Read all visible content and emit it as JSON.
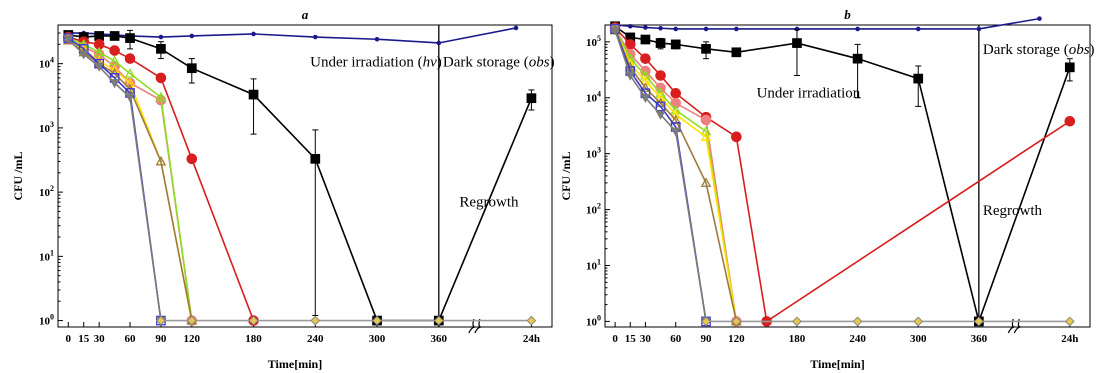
{
  "chart_data": [
    {
      "type": "line",
      "title": "a",
      "xlabel": "Time[min]",
      "ylabel": "CFU /mL",
      "yscale": "log",
      "ylim": [
        1,
        40000
      ],
      "x_ticks": [
        {
          "value": 0,
          "label": "0"
        },
        {
          "value": 15,
          "label": "15"
        },
        {
          "value": 30,
          "label": "30"
        },
        {
          "value": 60,
          "label": "60"
        },
        {
          "value": 90,
          "label": "90"
        },
        {
          "value": 120,
          "label": "120"
        },
        {
          "value": 180,
          "label": "180"
        },
        {
          "value": 240,
          "label": "240"
        },
        {
          "value": 300,
          "label": "300"
        },
        {
          "value": 360,
          "label": "360"
        },
        {
          "value": 450,
          "label": "24h"
        }
      ],
      "y_ticks": [
        {
          "value": 1,
          "base": "10",
          "exp": "0"
        },
        {
          "value": 10,
          "base": "10",
          "exp": "1"
        },
        {
          "value": 100,
          "base": "10",
          "exp": "2"
        },
        {
          "value": 1000,
          "base": "10",
          "exp": "3"
        },
        {
          "value": 10000,
          "base": "10",
          "exp": "4"
        }
      ],
      "annotations": [
        {
          "text": "Under irradiation",
          "italic_suffix": "hv",
          "x": 235,
          "y": 9000
        },
        {
          "text": "Dark storage",
          "italic_suffix": "obs",
          "x": 364,
          "y": 9000
        },
        {
          "text": "Regrowth",
          "italic_suffix": "",
          "x": 380,
          "y": 60
        }
      ],
      "divider_x": 360,
      "break_x": 395,
      "series": [
        {
          "color": "#1a1a8c",
          "marker": "dot",
          "points": [
            [
              0,
              30000
            ],
            [
              15,
              30000
            ],
            [
              30,
              29000
            ],
            [
              45,
              28000
            ],
            [
              60,
              27000
            ],
            [
              90,
              26000
            ],
            [
              120,
              27000
            ],
            [
              180,
              29000
            ],
            [
              240,
              26000
            ],
            [
              300,
              24000
            ],
            [
              360,
              21000
            ],
            [
              435,
              36000
            ]
          ]
        },
        {
          "color": "#000000",
          "marker": "square",
          "points": [
            [
              0,
              28000
            ],
            [
              15,
              26000
            ],
            [
              30,
              27000
            ],
            [
              45,
              27000
            ],
            [
              60,
              25000
            ],
            [
              90,
              17000
            ],
            [
              120,
              8500
            ],
            [
              180,
              3300
            ],
            [
              240,
              330
            ],
            [
              300,
              1
            ],
            [
              360,
              1
            ],
            [
              450,
              2900
            ]
          ],
          "errors": [
            0,
            0,
            0,
            0,
            8000,
            5000,
            3500,
            2500,
            600,
            0,
            0,
            1000
          ]
        },
        {
          "color": "#d81e1e",
          "marker": "circle",
          "points": [
            [
              0,
              26000
            ],
            [
              15,
              22000
            ],
            [
              30,
              20000
            ],
            [
              45,
              16000
            ],
            [
              60,
              12000
            ],
            [
              90,
              6000
            ],
            [
              120,
              330
            ],
            [
              180,
              1
            ]
          ]
        },
        {
          "color": "#f08080",
          "marker": "circle",
          "points": [
            [
              0,
              24000
            ],
            [
              15,
              18000
            ],
            [
              30,
              14000
            ],
            [
              45,
              9000
            ],
            [
              60,
              5000
            ],
            [
              90,
              2700
            ],
            [
              120,
              1
            ]
          ]
        },
        {
          "color": "#8ddc1f",
          "marker": "triangle",
          "points": [
            [
              0,
              25000
            ],
            [
              15,
              20000
            ],
            [
              30,
              15000
            ],
            [
              45,
              11000
            ],
            [
              60,
              7000
            ],
            [
              90,
              3000
            ],
            [
              120,
              1
            ]
          ]
        },
        {
          "color": "#ffe000",
          "marker": "triangle",
          "points": [
            [
              0,
              24000
            ],
            [
              15,
              16000
            ],
            [
              30,
              11000
            ],
            [
              45,
              8000
            ],
            [
              60,
              5000
            ],
            [
              90,
              300
            ],
            [
              120,
              1
            ]
          ]
        },
        {
          "color": "#9e7a3c",
          "marker": "triangle",
          "points": [
            [
              0,
              23000
            ],
            [
              15,
              15000
            ],
            [
              30,
              10000
            ],
            [
              45,
              7000
            ],
            [
              60,
              4000
            ],
            [
              90,
              300
            ],
            [
              120,
              1
            ]
          ]
        },
        {
          "color": "#3a3ad0",
          "marker": "square",
          "points": [
            [
              0,
              25000
            ],
            [
              15,
              17000
            ],
            [
              30,
              10000
            ],
            [
              45,
              6000
            ],
            [
              60,
              3500
            ],
            [
              90,
              1
            ]
          ]
        },
        {
          "color": "#7a7a7a",
          "marker": "triangle-down",
          "points": [
            [
              0,
              24000
            ],
            [
              15,
              14000
            ],
            [
              30,
              9000
            ],
            [
              45,
              5000
            ],
            [
              60,
              3000
            ],
            [
              90,
              1
            ]
          ]
        },
        {
          "color": "#9a9a9a",
          "marker": "diamond",
          "points": [
            [
              90,
              1
            ],
            [
              120,
              1
            ],
            [
              180,
              1
            ],
            [
              240,
              1
            ],
            [
              300,
              1
            ],
            [
              360,
              1
            ],
            [
              450,
              1
            ]
          ]
        }
      ]
    },
    {
      "type": "line",
      "title": "b",
      "xlabel": "Time[min]",
      "ylabel": "CFU /mL",
      "yscale": "log",
      "ylim": [
        1,
        200000
      ],
      "x_ticks": [
        {
          "value": 0,
          "label": "0"
        },
        {
          "value": 15,
          "label": "15"
        },
        {
          "value": 30,
          "label": "30"
        },
        {
          "value": 60,
          "label": "60"
        },
        {
          "value": 90,
          "label": "90"
        },
        {
          "value": 120,
          "label": "120"
        },
        {
          "value": 180,
          "label": "180"
        },
        {
          "value": 240,
          "label": "240"
        },
        {
          "value": 300,
          "label": "300"
        },
        {
          "value": 360,
          "label": "360"
        },
        {
          "value": 450,
          "label": "24h"
        }
      ],
      "y_ticks": [
        {
          "value": 1,
          "base": "10",
          "exp": "0"
        },
        {
          "value": 10,
          "base": "10",
          "exp": "1"
        },
        {
          "value": 100,
          "base": "10",
          "exp": "2"
        },
        {
          "value": 1000,
          "base": "10",
          "exp": "3"
        },
        {
          "value": 10000,
          "base": "10",
          "exp": "4"
        },
        {
          "value": 100000,
          "base": "10",
          "exp": "5"
        }
      ],
      "annotations": [
        {
          "text": "Under irradiation",
          "italic_suffix": "",
          "x": 140,
          "y": 10000
        },
        {
          "text": "Dark storage",
          "italic_suffix": "obs",
          "x": 364,
          "y": 60000
        },
        {
          "text": "Regrowth",
          "italic_suffix": "",
          "x": 364,
          "y": 80
        }
      ],
      "divider_x": 360,
      "break_x": 395,
      "series": [
        {
          "color": "#1a1a8c",
          "marker": "dot",
          "points": [
            [
              0,
              200000
            ],
            [
              15,
              190000
            ],
            [
              30,
              180000
            ],
            [
              45,
              175000
            ],
            [
              60,
              170000
            ],
            [
              90,
              170000
            ],
            [
              120,
              170000
            ],
            [
              180,
              170000
            ],
            [
              240,
              170000
            ],
            [
              300,
              170000
            ],
            [
              360,
              170000
            ],
            [
              420,
              260000
            ]
          ]
        },
        {
          "color": "#000000",
          "marker": "square",
          "points": [
            [
              0,
              190000
            ],
            [
              15,
              120000
            ],
            [
              30,
              110000
            ],
            [
              45,
              95000
            ],
            [
              60,
              90000
            ],
            [
              90,
              75000
            ],
            [
              120,
              65000
            ],
            [
              180,
              95000
            ],
            [
              240,
              50000
            ],
            [
              300,
              22000
            ],
            [
              360,
              1
            ],
            [
              450,
              35000
            ]
          ],
          "errors": [
            0,
            0,
            0,
            20000,
            15000,
            25000,
            10000,
            70000,
            40000,
            15000,
            0,
            15000
          ]
        },
        {
          "color": "#d81e1e",
          "marker": "circle",
          "points": [
            [
              0,
              180000
            ],
            [
              15,
              90000
            ],
            [
              30,
              50000
            ],
            [
              45,
              25000
            ],
            [
              60,
              12000
            ],
            [
              90,
              4500
            ],
            [
              120,
              2000
            ],
            [
              150,
              1
            ],
            [
              450,
              3800
            ]
          ]
        },
        {
          "color": "#f08080",
          "marker": "circle",
          "points": [
            [
              0,
              170000
            ],
            [
              15,
              60000
            ],
            [
              30,
              30000
            ],
            [
              45,
              15000
            ],
            [
              60,
              8000
            ],
            [
              90,
              4000
            ],
            [
              120,
              1
            ]
          ]
        },
        {
          "color": "#8ddc1f",
          "marker": "triangle",
          "points": [
            [
              0,
              170000
            ],
            [
              15,
              50000
            ],
            [
              30,
              25000
            ],
            [
              45,
              12000
            ],
            [
              60,
              6000
            ],
            [
              90,
              2500
            ],
            [
              120,
              1
            ]
          ]
        },
        {
          "color": "#ffe000",
          "marker": "triangle",
          "points": [
            [
              0,
              160000
            ],
            [
              15,
              40000
            ],
            [
              30,
              20000
            ],
            [
              45,
              10000
            ],
            [
              60,
              5000
            ],
            [
              90,
              2000
            ],
            [
              120,
              1
            ]
          ]
        },
        {
          "color": "#9e7a3c",
          "marker": "triangle",
          "points": [
            [
              0,
              160000
            ],
            [
              15,
              35000
            ],
            [
              30,
              15000
            ],
            [
              45,
              8000
            ],
            [
              60,
              4000
            ],
            [
              90,
              300
            ],
            [
              120,
              1
            ]
          ]
        },
        {
          "color": "#3a3ad0",
          "marker": "square",
          "points": [
            [
              0,
              170000
            ],
            [
              15,
              30000
            ],
            [
              30,
              12000
            ],
            [
              45,
              7000
            ],
            [
              60,
              3000
            ],
            [
              90,
              1
            ]
          ]
        },
        {
          "color": "#7a7a7a",
          "marker": "triangle-down",
          "points": [
            [
              0,
              160000
            ],
            [
              15,
              25000
            ],
            [
              30,
              10000
            ],
            [
              45,
              5000
            ],
            [
              60,
              2500
            ],
            [
              90,
              1
            ]
          ]
        },
        {
          "color": "#9a9a9a",
          "marker": "diamond",
          "points": [
            [
              90,
              1
            ],
            [
              120,
              1
            ],
            [
              180,
              1
            ],
            [
              240,
              1
            ],
            [
              300,
              1
            ],
            [
              360,
              1
            ],
            [
              450,
              1
            ]
          ]
        }
      ]
    }
  ]
}
